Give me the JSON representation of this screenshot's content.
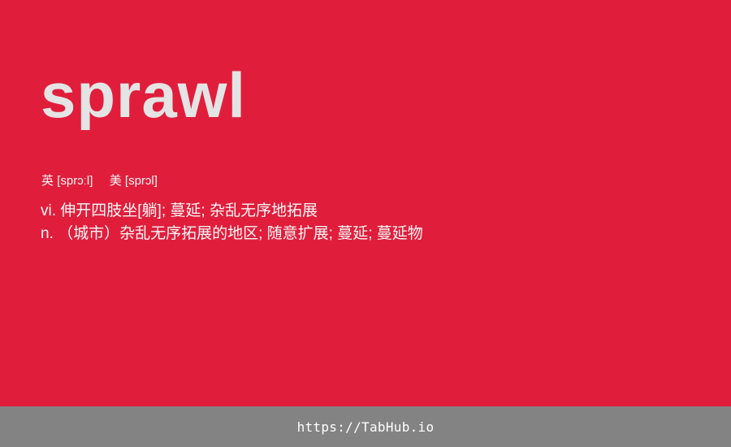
{
  "word": "sprawl",
  "phonetics": {
    "uk_label": "英",
    "uk_ipa": "[sprɔːl]",
    "us_label": "美",
    "us_ipa": "[sprɔl]"
  },
  "definitions": [
    "vi. 伸开四肢坐[躺]; 蔓延; 杂乱无序地拓展",
    "n. （城市）杂乱无序拓展的地区; 随意扩展; 蔓延; 蔓延物"
  ],
  "footer": {
    "link_text": "https://TabHub.io"
  },
  "colors": {
    "background": "#e01e3c",
    "footer_background": "#838383",
    "word_text": "#e4e4e4",
    "body_text": "#f6f6f6"
  }
}
